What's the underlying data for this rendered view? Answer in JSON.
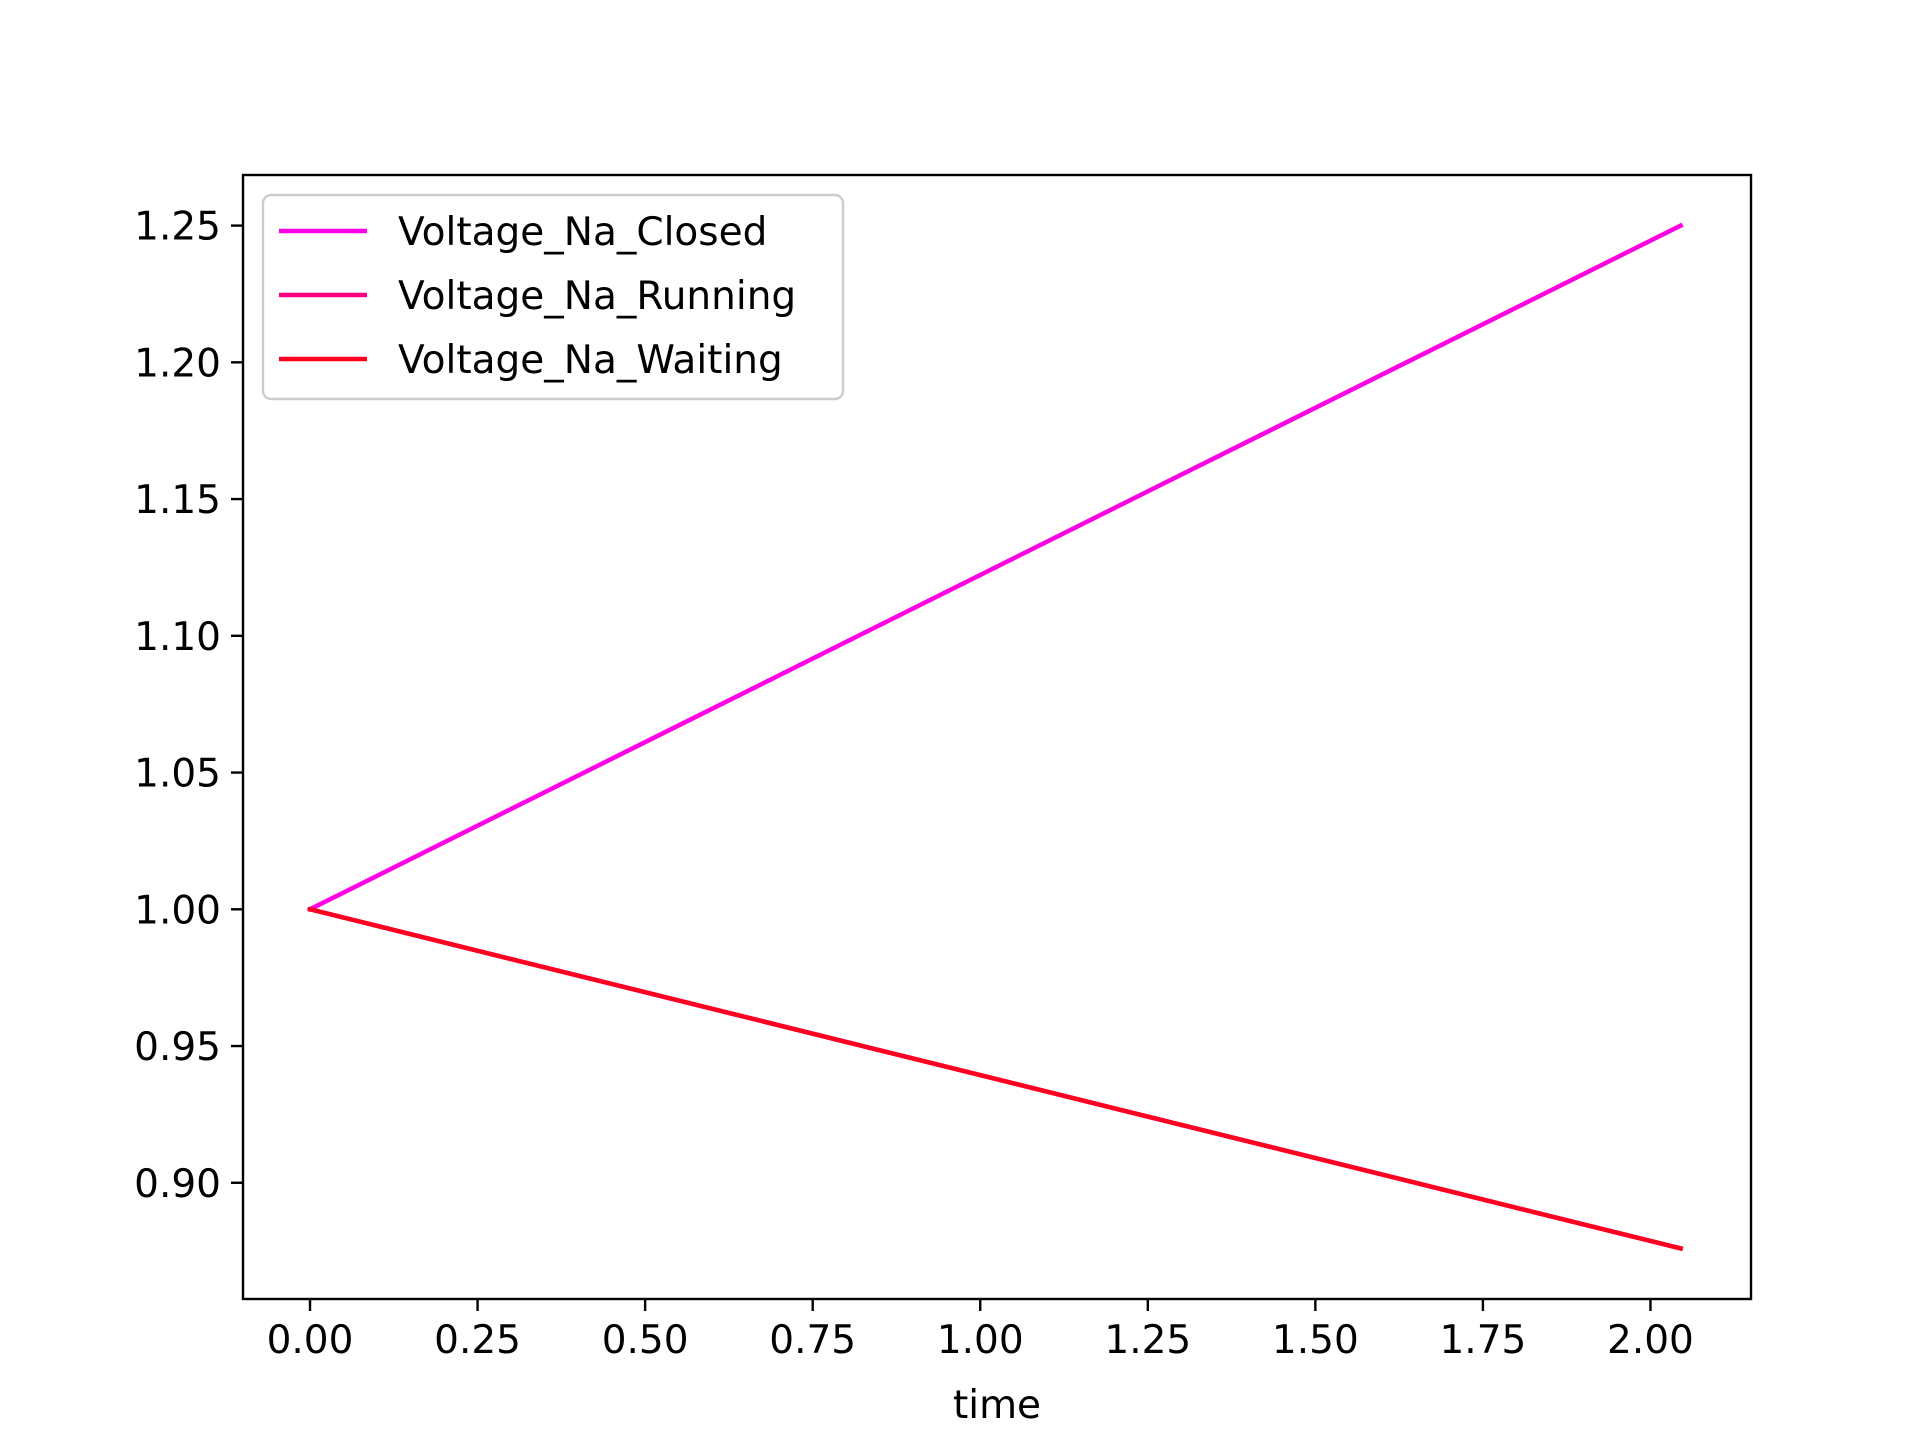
{
  "chart_data": {
    "type": "line",
    "title": "",
    "xlabel": "time",
    "ylabel": "",
    "xlim": [
      -0.1,
      2.15
    ],
    "ylim": [
      0.8575,
      1.2685
    ],
    "x_ticks": [
      "0.00",
      "0.25",
      "0.50",
      "0.75",
      "1.00",
      "1.25",
      "1.50",
      "1.75",
      "2.00"
    ],
    "y_ticks": [
      "0.90",
      "0.95",
      "1.00",
      "1.05",
      "1.10",
      "1.15",
      "1.20",
      "1.25"
    ],
    "grid": false,
    "legend_position": "upper-left",
    "series": [
      {
        "name": "Voltage_Na_Closed",
        "color": "#ff00e6",
        "x": [
          0.0,
          2.045
        ],
        "y": [
          1.0,
          1.25
        ]
      },
      {
        "name": "Voltage_Na_Running",
        "color": "#ff0080",
        "x": [
          0.0,
          2.045
        ],
        "y": [
          1.0,
          0.876
        ]
      },
      {
        "name": "Voltage_Na_Waiting",
        "color": "#ff0020",
        "x": [
          0.0,
          2.045
        ],
        "y": [
          1.0,
          0.876
        ]
      }
    ]
  }
}
